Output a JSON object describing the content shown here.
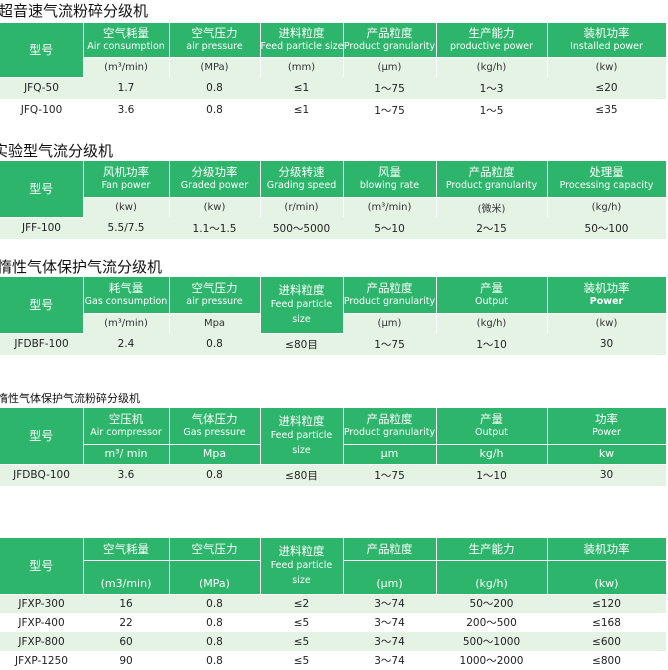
{
  "colors": {
    "header_bg": "#2db66b",
    "row_tint": "#e4f3e4"
  },
  "t1": {
    "title": "超音速气流粉碎分级机",
    "model": "型号",
    "h": [
      {
        "zh": "空气耗量",
        "en": "Air consumption"
      },
      {
        "zh": "空气压力",
        "en": "air pressure"
      },
      {
        "zh": "进料粒度",
        "en": "Feed particle size"
      },
      {
        "zh": "产品粒度",
        "en": "Product granularity"
      },
      {
        "zh": "生产能力",
        "en": "productive power"
      },
      {
        "zh": "装机功率",
        "en": "Installed power"
      }
    ],
    "units": [
      "(m³/min)",
      "(MPa)",
      "(mm)",
      "(μm)",
      "(kg/h)",
      "(kw)"
    ],
    "rows": [
      [
        "JFQ-50",
        "1.7",
        "0.8",
        "≤1",
        "1～75",
        "1～3",
        "≤20"
      ],
      [
        "JFQ-100",
        "3.6",
        "0.8",
        "≤1",
        "1～75",
        "1～5",
        "≤35"
      ]
    ]
  },
  "t2": {
    "title": "实验型气流分级机",
    "model": "型号",
    "h": [
      {
        "zh": "风机功率",
        "en": "Fan power"
      },
      {
        "zh": "分级功率",
        "en": "Graded power"
      },
      {
        "zh": "分级转速",
        "en": "Grading speed"
      },
      {
        "zh": "风量",
        "en": "blowing rate"
      },
      {
        "zh": "产品粒度",
        "en": "Product granularity"
      },
      {
        "zh": "处理量",
        "en": "Processing capacity"
      }
    ],
    "units": [
      "(kw)",
      "(kw)",
      "(r/min)",
      "(m³/min)",
      "(微米)",
      "(kg/h)"
    ],
    "rows": [
      [
        "JFF-100",
        "5.5/7.5",
        "1.1～1.5",
        "500～5000",
        "5～10",
        "2～15",
        "50～100"
      ]
    ]
  },
  "t3": {
    "title": "惰性气体保护气流分级机",
    "model": "型号",
    "h": [
      {
        "zh": "耗气量",
        "en": "Gas consumption"
      },
      {
        "zh": "空气压力",
        "en": "air pressure"
      },
      {
        "zh": "进料粒度",
        "en": "Feed particle size"
      },
      {
        "zh": "产品粒度",
        "en": "Product granularity"
      },
      {
        "zh": "产量",
        "en": "Output"
      },
      {
        "zh": "装机功率",
        "en": "Power"
      }
    ],
    "units": [
      "(m³/min)",
      "Mpa",
      "",
      "(μm)",
      "(kg/h)",
      "(kw)"
    ],
    "rows": [
      [
        "JFDBF-100",
        "2.4",
        "0.8",
        "≤80目",
        "1～75",
        "1～10",
        "30"
      ]
    ]
  },
  "t4": {
    "title": "惰性气体保护气流粉碎分级机",
    "model": "型号",
    "h": [
      {
        "zh": "空压机",
        "en": "Air compressor"
      },
      {
        "zh": "气体压力",
        "en": "Gas pressure"
      },
      {
        "zh": "进料粒度",
        "en": "Feed particle size"
      },
      {
        "zh": "产品粒度",
        "en": "Product granularity"
      },
      {
        "zh": "产量",
        "en": "Output"
      },
      {
        "zh": "功率",
        "en": "Power"
      }
    ],
    "units": [
      "m³/ min",
      "Mpa",
      "",
      "μm",
      "kg/h",
      "kw"
    ],
    "rows": [
      [
        "JFDBQ-100",
        "3.6",
        "0.8",
        "≤80目",
        "1～75",
        "1～10",
        "30"
      ]
    ]
  },
  "t5": {
    "model": "型号",
    "h": [
      {
        "zh": "空气耗量",
        "en": ""
      },
      {
        "zh": "空气压力",
        "en": ""
      },
      {
        "zh": "进料粒度",
        "en": "Feed particle size"
      },
      {
        "zh": "产品粒度",
        "en": ""
      },
      {
        "zh": "生产能力",
        "en": ""
      },
      {
        "zh": "装机功率",
        "en": ""
      }
    ],
    "units": [
      "(m3/min)",
      "(MPa)",
      "",
      "(μm)",
      "(kg/h)",
      "(kw)"
    ],
    "rows": [
      [
        "JFXP-300",
        "16",
        "0.8",
        "≤2",
        "3～74",
        "50～200",
        "≤120"
      ],
      [
        "JFXP-400",
        "22",
        "0.8",
        "≤5",
        "3～74",
        "200～500",
        "≤168"
      ],
      [
        "JFXP-800",
        "60",
        "0.8",
        "≤5",
        "3～74",
        "500～1000",
        "≤600"
      ],
      [
        "JFXP-1250",
        "90",
        "0.8",
        "≤5",
        "3～74",
        "1000～2000",
        "≤800"
      ]
    ]
  }
}
